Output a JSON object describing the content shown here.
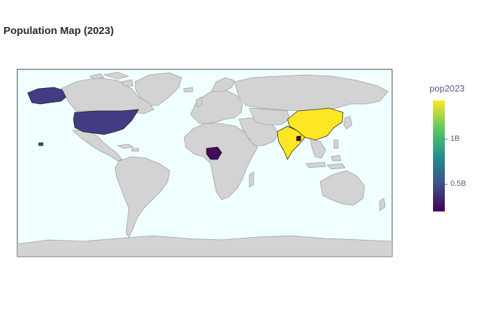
{
  "title": "Population Map (2023)",
  "colorbar": {
    "title": "pop2023",
    "ticks": [
      {
        "label": "1B",
        "value": 1000000000
      },
      {
        "label": "0.5B",
        "value": 500000000
      }
    ],
    "range": [
      200000000,
      1430000000
    ],
    "colorscale": "viridis"
  },
  "colors": {
    "ocean": "#f0ffff",
    "land": "#d3d3d3",
    "border": "#a0a0a0"
  },
  "highlighted_countries": [
    {
      "name": "India",
      "color": "#fde725"
    },
    {
      "name": "China",
      "color": "#fde725"
    },
    {
      "name": "United States",
      "color": "#433c84"
    },
    {
      "name": "Nigeria",
      "color": "#440b57"
    },
    {
      "name": "Bangladesh",
      "color": "#440154"
    }
  ]
}
